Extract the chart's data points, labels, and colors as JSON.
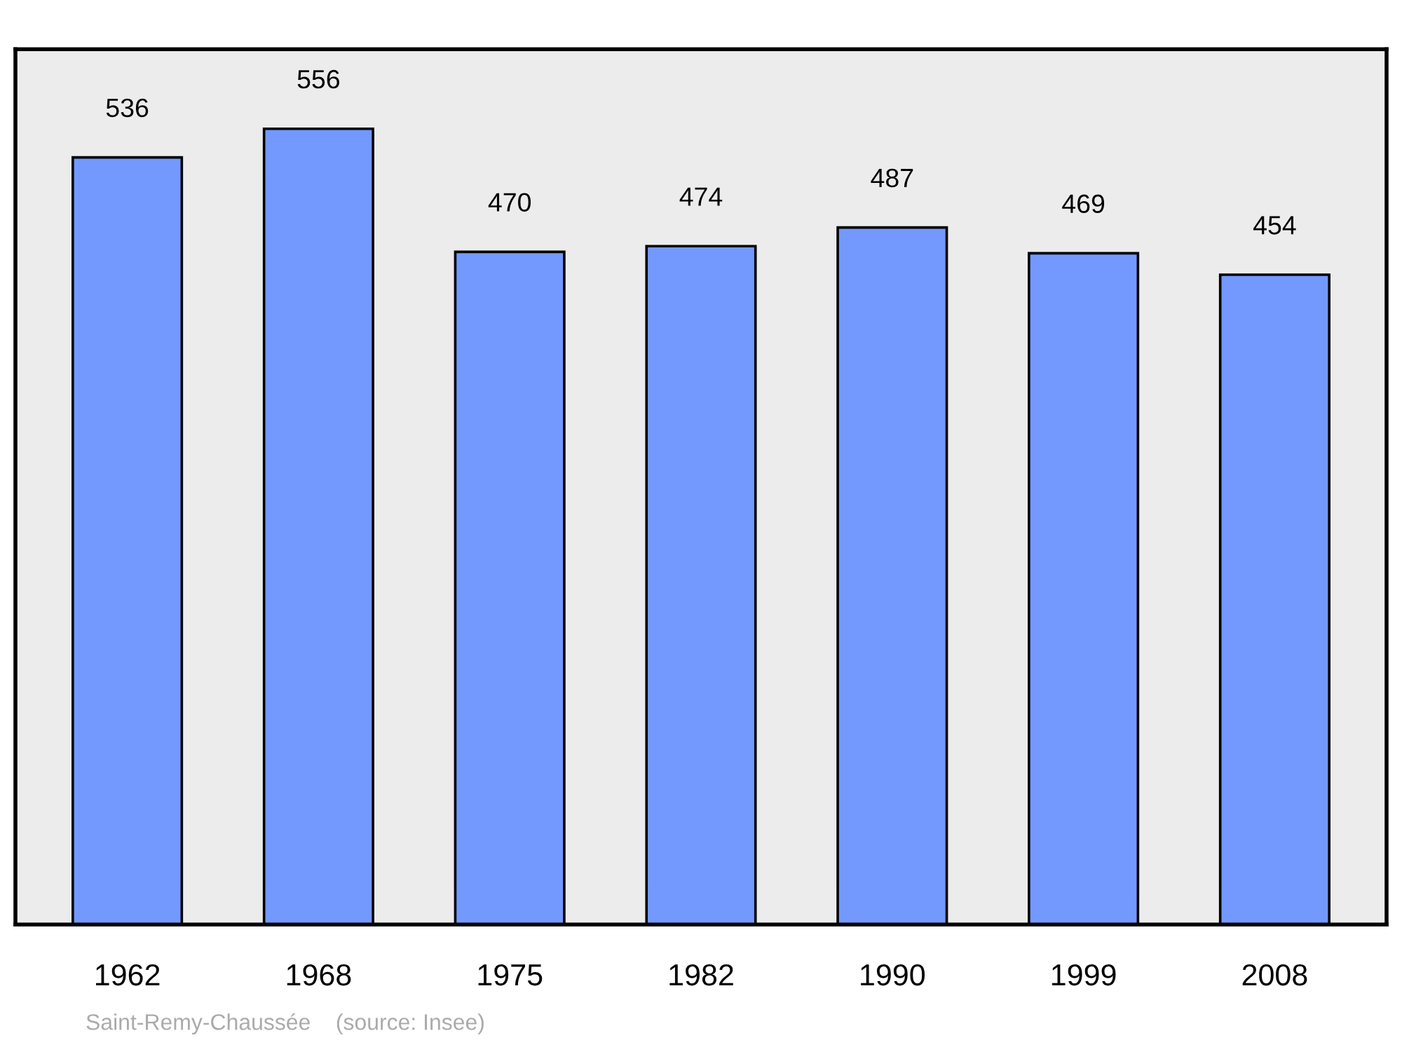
{
  "chart_data": {
    "type": "bar",
    "categories": [
      "1962",
      "1968",
      "1975",
      "1982",
      "1990",
      "1999",
      "2008"
    ],
    "values": [
      536,
      556,
      470,
      474,
      487,
      469,
      454
    ],
    "color": "#7399ff",
    "data_labels": true,
    "annotations": [
      "Saint-Remy-Chaussée    (source: Insee)"
    ]
  }
}
